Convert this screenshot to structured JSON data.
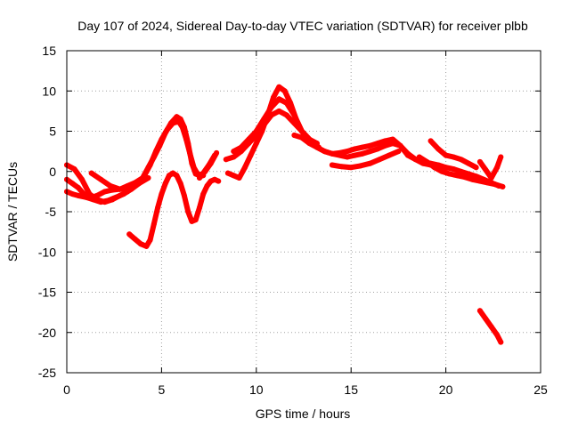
{
  "chart_data": {
    "type": "scatter",
    "title": "Day 107 of 2024, Sidereal Day-to-day VTEC variation (SDTVAR) for receiver plbb",
    "xlabel": "GPS time / hours",
    "ylabel": "SDTVAR / TECUs",
    "xlim": [
      0,
      25
    ],
    "ylim": [
      -25,
      15
    ],
    "xticks": [
      0,
      5,
      10,
      15,
      20,
      25
    ],
    "yticks": [
      -25,
      -20,
      -15,
      -10,
      -5,
      0,
      5,
      10,
      15
    ],
    "grid": true,
    "legend": "none",
    "color": "#ff0000",
    "series": [
      {
        "name": "track-1",
        "x": [
          0.0,
          0.3,
          0.6,
          0.9,
          1.2,
          1.6,
          2.0,
          2.4,
          2.8,
          3.2,
          3.6,
          4.0,
          4.3,
          4.6,
          4.9,
          5.2,
          5.5,
          5.8,
          6.0,
          6.2,
          6.4,
          6.6,
          6.8,
          7.0,
          7.2,
          7.5,
          7.8
        ],
        "y": [
          -1.0,
          -1.5,
          -2.0,
          -2.8,
          -3.3,
          -3.0,
          -2.5,
          -2.3,
          -2.2,
          -1.8,
          -1.4,
          -0.8,
          0.5,
          1.8,
          3.2,
          4.8,
          6.0,
          6.8,
          6.5,
          5.5,
          3.5,
          1.0,
          -0.3,
          -0.5,
          -0.2,
          0.8,
          2.0
        ]
      },
      {
        "name": "track-2",
        "x": [
          0.0,
          0.3,
          0.6,
          1.0,
          1.4,
          1.8,
          2.2,
          2.6,
          3.0,
          3.4,
          3.8,
          4.1,
          4.4,
          4.7,
          5.0,
          5.3,
          5.6,
          5.9,
          6.1,
          6.3,
          6.5,
          6.7,
          6.9,
          7.2
        ],
        "y": [
          -2.5,
          -2.8,
          -3.0,
          -3.2,
          -3.5,
          -3.8,
          -3.6,
          -3.2,
          -2.8,
          -2.2,
          -1.5,
          -0.5,
          0.8,
          2.5,
          4.0,
          5.2,
          6.0,
          6.2,
          5.5,
          4.0,
          2.2,
          0.5,
          -0.3,
          -0.5
        ]
      },
      {
        "name": "track-3",
        "x": [
          0.0,
          0.4,
          0.8,
          1.2,
          1.6,
          2.0,
          2.4,
          2.8,
          3.2
        ],
        "y": [
          0.8,
          0.3,
          -1.0,
          -2.8,
          -3.5,
          -3.8,
          -3.5,
          -3.0,
          -2.5
        ]
      },
      {
        "name": "track-4",
        "x": [
          1.3,
          1.8,
          2.3,
          2.8,
          3.3,
          3.8,
          4.3
        ],
        "y": [
          -0.2,
          -1.0,
          -1.8,
          -2.2,
          -2.0,
          -1.5,
          -0.8
        ]
      },
      {
        "name": "track-5",
        "x": [
          3.3,
          3.6,
          3.9,
          4.2,
          4.4,
          4.6,
          4.8,
          5.0,
          5.2,
          5.4,
          5.6,
          5.8,
          6.0,
          6.2,
          6.4,
          6.6,
          6.8,
          7.0,
          7.2,
          7.4,
          7.6,
          7.8,
          8.0
        ],
        "y": [
          -7.8,
          -8.4,
          -9.0,
          -9.3,
          -8.5,
          -6.5,
          -4.5,
          -2.8,
          -1.5,
          -0.5,
          -0.2,
          -0.5,
          -1.5,
          -3.0,
          -5.0,
          -6.2,
          -6.0,
          -4.5,
          -2.8,
          -1.8,
          -1.2,
          -1.0,
          -1.2
        ]
      },
      {
        "name": "track-6",
        "x": [
          7.0,
          7.3,
          7.6,
          7.9
        ],
        "y": [
          -0.8,
          0.0,
          1.0,
          2.3
        ]
      },
      {
        "name": "track-7",
        "x": [
          8.5,
          8.8,
          9.1,
          9.4,
          9.7,
          10.0,
          10.3,
          10.6,
          10.9,
          11.2,
          11.5,
          11.8,
          12.1,
          12.4,
          12.7,
          13.0,
          13.3
        ],
        "y": [
          -0.2,
          -0.5,
          -0.8,
          0.5,
          2.0,
          3.5,
          5.0,
          7.0,
          9.2,
          10.5,
          10.0,
          8.5,
          6.5,
          5.0,
          4.0,
          3.5,
          3.0
        ]
      },
      {
        "name": "track-8",
        "x": [
          8.8,
          9.2,
          9.6,
          10.0,
          10.4,
          10.8,
          11.2,
          11.6,
          12.0,
          12.4,
          12.8,
          13.2,
          13.6,
          14.0,
          14.4,
          14.8,
          15.2,
          15.6,
          16.0,
          16.4,
          16.8,
          17.2,
          17.6,
          18.0,
          18.4,
          18.8,
          19.2,
          19.6,
          20.0,
          20.4,
          20.8,
          21.2,
          21.6,
          22.0,
          22.4,
          22.8
        ],
        "y": [
          2.5,
          3.0,
          4.0,
          5.0,
          6.5,
          8.0,
          9.0,
          8.5,
          7.0,
          5.0,
          4.0,
          3.0,
          2.5,
          2.2,
          2.0,
          1.8,
          2.0,
          2.2,
          2.5,
          2.8,
          3.2,
          3.5,
          3.2,
          2.2,
          1.5,
          1.2,
          1.0,
          0.8,
          0.5,
          0.3,
          0.0,
          -0.3,
          -0.6,
          -1.0,
          -1.4,
          -1.8
        ]
      },
      {
        "name": "track-9",
        "x": [
          8.4,
          8.8,
          9.2,
          9.6,
          10.0,
          10.4,
          10.8,
          11.2,
          11.6,
          12.0,
          12.4,
          12.8,
          13.2
        ],
        "y": [
          1.5,
          1.8,
          2.5,
          3.5,
          4.5,
          5.8,
          7.0,
          7.5,
          7.0,
          6.0,
          5.0,
          4.0,
          3.5
        ]
      },
      {
        "name": "track-10",
        "x": [
          12.0,
          12.4,
          12.8,
          13.2,
          13.6,
          14.0,
          14.4,
          14.8,
          15.2,
          15.6,
          16.0,
          16.4,
          16.8,
          17.2,
          17.6,
          18.0,
          18.4,
          18.8,
          19.2
        ],
        "y": [
          4.5,
          4.2,
          3.5,
          3.0,
          2.5,
          2.2,
          2.3,
          2.5,
          2.8,
          3.0,
          3.2,
          3.5,
          3.8,
          4.0,
          3.2,
          2.0,
          1.5,
          1.0,
          0.8
        ]
      },
      {
        "name": "track-11",
        "x": [
          14.0,
          14.5,
          15.0,
          15.5,
          16.0,
          16.5,
          17.0,
          17.5
        ],
        "y": [
          0.8,
          0.6,
          0.5,
          0.7,
          1.0,
          1.5,
          2.0,
          2.5
        ]
      },
      {
        "name": "track-12",
        "x": [
          18.6,
          19.0,
          19.4,
          19.8,
          20.2,
          20.6,
          21.0,
          21.4,
          21.8,
          22.2,
          22.6,
          23.0
        ],
        "y": [
          1.8,
          1.2,
          0.5,
          0.0,
          -0.3,
          -0.5,
          -0.7,
          -1.0,
          -1.2,
          -1.4,
          -1.6,
          -1.9
        ]
      },
      {
        "name": "track-13",
        "x": [
          19.2,
          19.6,
          20.0,
          20.4,
          20.8,
          21.2,
          21.6
        ],
        "y": [
          3.8,
          2.8,
          2.0,
          1.8,
          1.5,
          1.0,
          0.5
        ]
      },
      {
        "name": "track-14",
        "x": [
          21.8,
          22.1,
          22.4,
          22.7,
          22.9
        ],
        "y": [
          1.2,
          0.2,
          -0.8,
          0.5,
          1.8
        ]
      },
      {
        "name": "track-15",
        "x": [
          21.8,
          22.1,
          22.4,
          22.7,
          22.9
        ],
        "y": [
          -17.3,
          -18.3,
          -19.3,
          -20.3,
          -21.2
        ]
      }
    ]
  }
}
